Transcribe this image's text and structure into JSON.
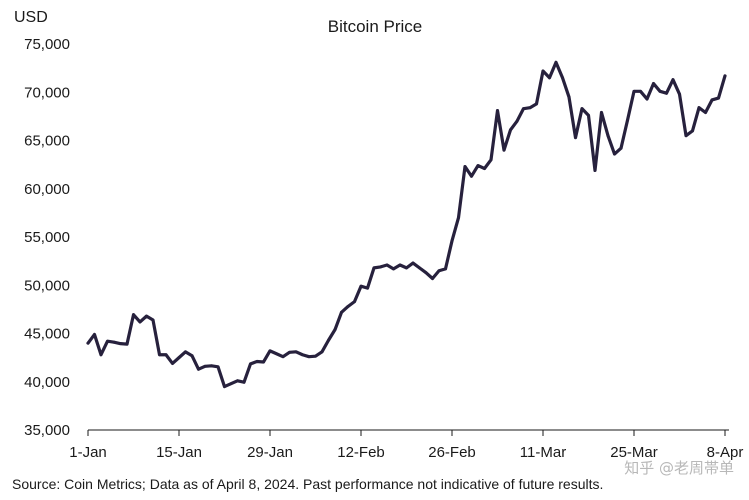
{
  "chart_data": {
    "type": "line",
    "title": "Bitcoin Price",
    "ylabel": "USD",
    "xlabel": "",
    "ylim": [
      35000,
      75000
    ],
    "yticks": [
      35000,
      40000,
      45000,
      50000,
      55000,
      60000,
      65000,
      70000,
      75000
    ],
    "ytick_labels": [
      "35,000",
      "40,000",
      "45,000",
      "50,000",
      "55,000",
      "60,000",
      "65,000",
      "70,000",
      "75,000"
    ],
    "xlim": [
      "2024-01-01",
      "2024-04-08"
    ],
    "xticks": [
      "2024-01-01",
      "2024-01-15",
      "2024-01-29",
      "2024-02-12",
      "2024-02-26",
      "2024-03-11",
      "2024-03-25",
      "2024-04-08"
    ],
    "xtick_labels": [
      "1-Jan",
      "15-Jan",
      "29-Jan",
      "12-Feb",
      "26-Feb",
      "11-Mar",
      "25-Mar",
      "8-Apr"
    ],
    "grid": false,
    "line_color": "#27213d",
    "series": [
      {
        "x": [
          "2024-01-01",
          "2024-01-02",
          "2024-01-03",
          "2024-01-04",
          "2024-01-05",
          "2024-01-06",
          "2024-01-07",
          "2024-01-08",
          "2024-01-09",
          "2024-01-10",
          "2024-01-11",
          "2024-01-12",
          "2024-01-13",
          "2024-01-14",
          "2024-01-15",
          "2024-01-16",
          "2024-01-17",
          "2024-01-18",
          "2024-01-19",
          "2024-01-20",
          "2024-01-21",
          "2024-01-22",
          "2024-01-23",
          "2024-01-24",
          "2024-01-25",
          "2024-01-26",
          "2024-01-27",
          "2024-01-28",
          "2024-01-29",
          "2024-01-30",
          "2024-01-31",
          "2024-02-01",
          "2024-02-02",
          "2024-02-03",
          "2024-02-04",
          "2024-02-05",
          "2024-02-06",
          "2024-02-07",
          "2024-02-08",
          "2024-02-09",
          "2024-02-10",
          "2024-02-11",
          "2024-02-12",
          "2024-02-13",
          "2024-02-14",
          "2024-02-15",
          "2024-02-16",
          "2024-02-17",
          "2024-02-18",
          "2024-02-19",
          "2024-02-20",
          "2024-02-21",
          "2024-02-22",
          "2024-02-23",
          "2024-02-24",
          "2024-02-25",
          "2024-02-26",
          "2024-02-27",
          "2024-02-28",
          "2024-02-29",
          "2024-03-01",
          "2024-03-02",
          "2024-03-03",
          "2024-03-04",
          "2024-03-05",
          "2024-03-06",
          "2024-03-07",
          "2024-03-08",
          "2024-03-09",
          "2024-03-10",
          "2024-03-11",
          "2024-03-12",
          "2024-03-13",
          "2024-03-14",
          "2024-03-15",
          "2024-03-16",
          "2024-03-17",
          "2024-03-18",
          "2024-03-19",
          "2024-03-20",
          "2024-03-21",
          "2024-03-22",
          "2024-03-23",
          "2024-03-24",
          "2024-03-25",
          "2024-03-26",
          "2024-03-27",
          "2024-03-28",
          "2024-03-29",
          "2024-03-30",
          "2024-03-31",
          "2024-04-01",
          "2024-04-02",
          "2024-04-03",
          "2024-04-04",
          "2024-04-05",
          "2024-04-06",
          "2024-04-07",
          "2024-04-08"
        ],
        "values": [
          44000,
          44900,
          42800,
          44200,
          44100,
          43950,
          43900,
          46950,
          46200,
          46800,
          46400,
          42800,
          42800,
          41900,
          42500,
          43100,
          42700,
          41300,
          41600,
          41650,
          41550,
          39500,
          39800,
          40100,
          39950,
          41850,
          42100,
          42050,
          43200,
          42900,
          42600,
          43050,
          43100,
          42800,
          42600,
          42650,
          43100,
          44300,
          45400,
          47200,
          47800,
          48300,
          49900,
          49700,
          51800,
          51900,
          52100,
          51700,
          52100,
          51800,
          52300,
          51800,
          51300,
          50700,
          51500,
          51700,
          54600,
          57000,
          62300,
          61300,
          62400,
          62100,
          63000,
          68100,
          64000,
          66100,
          67000,
          68300,
          68400,
          68800,
          72200,
          71500,
          73100,
          71500,
          69500,
          65300,
          68300,
          67600,
          61900,
          67900,
          65500,
          63600,
          64200,
          67100,
          70100,
          70100,
          69300,
          70900,
          70100,
          69900,
          71300,
          69800,
          65500,
          66000,
          68400,
          67900,
          69200,
          69400,
          71700
        ]
      }
    ],
    "source_note": "Source: Coin Metrics; Data as of April 8, 2024. Past performance not indicative of future results.",
    "watermark": "知乎 @老周帯单"
  }
}
